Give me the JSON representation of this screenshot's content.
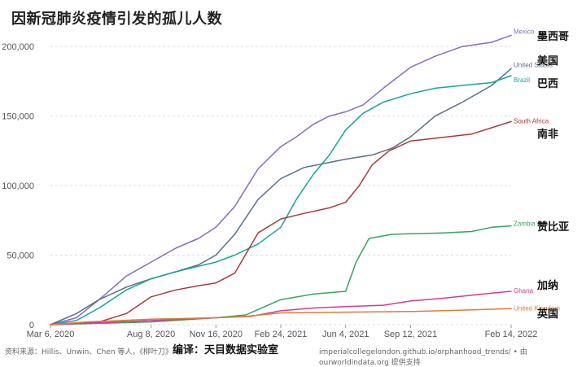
{
  "title": "因新冠肺炎疫情引发的孤儿人数",
  "footer": {
    "source": "资料来源：Hillis、Unwin、Chen 等人，《柳叶刀》",
    "editor": "编译：天目数据实验室",
    "credit": "imperialcollegelondon.github.io/orphanhood_trends/ • 由 ourworldindata.org 提供支持"
  },
  "colors": {
    "Mexico": "#8a6bbf",
    "United States": "#5b6f86",
    "Brazil": "#17a49a",
    "South Africa": "#a83a3a",
    "Zambia": "#3aa35a",
    "Ghana": "#d83a8f",
    "United Kingdom": "#e07a3a"
  },
  "chart_data": {
    "type": "line",
    "title": "因新冠肺炎疫情引发的孤儿人数",
    "x_ticks": [
      "Mar 6, 2020",
      "Aug 8, 2020",
      "Nov 16, 2020",
      "Feb 24, 2021",
      "Jun 4, 2021",
      "Sep 12, 2021",
      "Feb 14, 2022"
    ],
    "y_ticks": [
      "0",
      "50,000",
      "100,000",
      "150,000",
      "200,000"
    ],
    "ylim": [
      0,
      210000
    ],
    "xlim": [
      "2020-03-06",
      "2022-02-14"
    ],
    "grid": true,
    "series": [
      {
        "name": "Mexico",
        "cn_name": "墨西哥",
        "values": [
          [
            "2020-03-06",
            0
          ],
          [
            "2020-04-15",
            5000
          ],
          [
            "2020-05-20",
            18000
          ],
          [
            "2020-07-01",
            35000
          ],
          [
            "2020-08-08",
            45000
          ],
          [
            "2020-09-15",
            55000
          ],
          [
            "2020-10-20",
            62000
          ],
          [
            "2020-11-16",
            70000
          ],
          [
            "2020-12-15",
            85000
          ],
          [
            "2021-01-20",
            112000
          ],
          [
            "2021-02-24",
            128000
          ],
          [
            "2021-03-20",
            135000
          ],
          [
            "2021-04-15",
            144000
          ],
          [
            "2021-05-10",
            150000
          ],
          [
            "2021-06-04",
            153000
          ],
          [
            "2021-07-01",
            158000
          ],
          [
            "2021-08-01",
            170000
          ],
          [
            "2021-09-12",
            185000
          ],
          [
            "2021-10-20",
            193000
          ],
          [
            "2021-12-01",
            200000
          ],
          [
            "2022-01-15",
            203000
          ],
          [
            "2022-02-14",
            208000
          ]
        ]
      },
      {
        "name": "United States",
        "cn_name": "美国",
        "values": [
          [
            "2020-03-06",
            0
          ],
          [
            "2020-04-15",
            8000
          ],
          [
            "2020-05-20",
            18000
          ],
          [
            "2020-07-01",
            27000
          ],
          [
            "2020-08-08",
            33000
          ],
          [
            "2020-09-15",
            38000
          ],
          [
            "2020-10-20",
            43000
          ],
          [
            "2020-11-16",
            50000
          ],
          [
            "2020-12-15",
            65000
          ],
          [
            "2021-01-20",
            90000
          ],
          [
            "2021-02-24",
            105000
          ],
          [
            "2021-04-01",
            113000
          ],
          [
            "2021-06-04",
            119000
          ],
          [
            "2021-07-15",
            122000
          ],
          [
            "2021-08-15",
            127000
          ],
          [
            "2021-09-12",
            135000
          ],
          [
            "2021-10-20",
            150000
          ],
          [
            "2021-12-01",
            160000
          ],
          [
            "2022-01-15",
            172000
          ],
          [
            "2022-02-14",
            184000
          ]
        ]
      },
      {
        "name": "Brazil",
        "cn_name": "巴西",
        "values": [
          [
            "2020-03-06",
            0
          ],
          [
            "2020-04-15",
            3000
          ],
          [
            "2020-05-20",
            12000
          ],
          [
            "2020-07-01",
            25000
          ],
          [
            "2020-08-08",
            33000
          ],
          [
            "2020-09-15",
            38000
          ],
          [
            "2020-10-20",
            42000
          ],
          [
            "2020-11-16",
            45000
          ],
          [
            "2020-12-15",
            50000
          ],
          [
            "2021-01-20",
            58000
          ],
          [
            "2021-02-24",
            70000
          ],
          [
            "2021-03-20",
            90000
          ],
          [
            "2021-04-15",
            108000
          ],
          [
            "2021-05-10",
            122000
          ],
          [
            "2021-06-04",
            140000
          ],
          [
            "2021-07-01",
            152000
          ],
          [
            "2021-08-01",
            160000
          ],
          [
            "2021-09-12",
            166000
          ],
          [
            "2021-10-20",
            170000
          ],
          [
            "2021-12-01",
            172000
          ],
          [
            "2022-01-15",
            174000
          ],
          [
            "2022-02-14",
            179000
          ]
        ]
      },
      {
        "name": "South Africa",
        "cn_name": "南非",
        "values": [
          [
            "2020-03-06",
            0
          ],
          [
            "2020-05-20",
            2000
          ],
          [
            "2020-07-01",
            8000
          ],
          [
            "2020-08-08",
            20000
          ],
          [
            "2020-09-15",
            25000
          ],
          [
            "2020-10-20",
            28000
          ],
          [
            "2020-11-16",
            30000
          ],
          [
            "2020-12-15",
            37000
          ],
          [
            "2021-01-20",
            66000
          ],
          [
            "2021-02-24",
            76000
          ],
          [
            "2021-04-01",
            80000
          ],
          [
            "2021-05-10",
            84000
          ],
          [
            "2021-06-04",
            88000
          ],
          [
            "2021-06-25",
            100000
          ],
          [
            "2021-07-15",
            115000
          ],
          [
            "2021-08-10",
            125000
          ],
          [
            "2021-09-12",
            132000
          ],
          [
            "2021-10-20",
            134000
          ],
          [
            "2021-12-15",
            137000
          ],
          [
            "2022-02-14",
            146000
          ]
        ]
      },
      {
        "name": "Zambia",
        "cn_name": "赞比亚",
        "values": [
          [
            "2020-03-06",
            0
          ],
          [
            "2020-08-08",
            2000
          ],
          [
            "2020-11-16",
            5000
          ],
          [
            "2021-01-01",
            7000
          ],
          [
            "2021-02-24",
            18000
          ],
          [
            "2021-04-15",
            22000
          ],
          [
            "2021-06-04",
            24000
          ],
          [
            "2021-06-20",
            45000
          ],
          [
            "2021-07-10",
            62000
          ],
          [
            "2021-08-15",
            65000
          ],
          [
            "2021-11-01",
            66000
          ],
          [
            "2021-12-15",
            67000
          ],
          [
            "2022-01-15",
            70000
          ],
          [
            "2022-02-14",
            71000
          ]
        ]
      },
      {
        "name": "Ghana",
        "cn_name": "加纳",
        "values": [
          [
            "2020-03-06",
            0
          ],
          [
            "2020-08-08",
            3000
          ],
          [
            "2020-11-16",
            5000
          ],
          [
            "2021-01-10",
            6000
          ],
          [
            "2021-02-24",
            10000
          ],
          [
            "2021-04-15",
            12000
          ],
          [
            "2021-06-04",
            13000
          ],
          [
            "2021-08-01",
            14000
          ],
          [
            "2021-09-12",
            17000
          ],
          [
            "2021-11-01",
            19000
          ],
          [
            "2022-01-01",
            22000
          ],
          [
            "2022-02-14",
            24000
          ]
        ]
      },
      {
        "name": "United Kingdom",
        "cn_name": "英国",
        "values": [
          [
            "2020-03-06",
            0
          ],
          [
            "2020-05-01",
            2000
          ],
          [
            "2020-08-08",
            4000
          ],
          [
            "2020-11-16",
            5000
          ],
          [
            "2021-01-01",
            6000
          ],
          [
            "2021-02-24",
            8500
          ],
          [
            "2021-06-04",
            9000
          ],
          [
            "2021-09-12",
            9500
          ],
          [
            "2021-12-01",
            10500
          ],
          [
            "2022-02-14",
            11500
          ]
        ]
      }
    ]
  }
}
